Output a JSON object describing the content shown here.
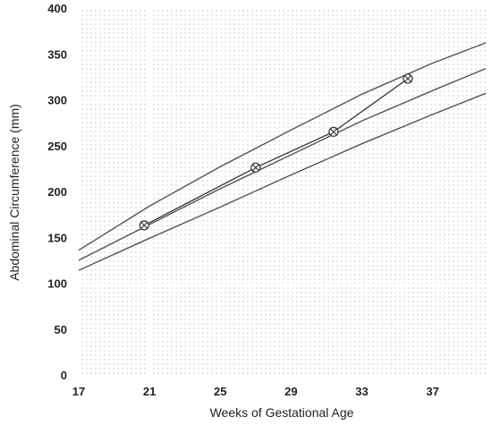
{
  "chart_data": {
    "type": "line",
    "title": "",
    "xlabel": "Weeks of Gestational Age",
    "ylabel": "Abdominal Circumference (mm)",
    "xlim": [
      17,
      40
    ],
    "ylim": [
      0,
      400
    ],
    "xticks": [
      17,
      21,
      25,
      29,
      33,
      37
    ],
    "yticks": [
      0,
      50,
      100,
      150,
      200,
      250,
      300,
      350,
      400
    ],
    "background": "stippled",
    "grid": true,
    "colors": {
      "reference_curves": "#555555",
      "measurements": "#333333"
    },
    "reference_curves": [
      {
        "x": [
          17,
          21,
          25,
          29,
          33,
          37,
          40
        ],
        "y": [
          137,
          185,
          228,
          268,
          307,
          341,
          363
        ]
      },
      {
        "x": [
          17,
          21,
          25,
          29,
          33,
          37,
          40
        ],
        "y": [
          126,
          165,
          204,
          241,
          278,
          311,
          335
        ]
      },
      {
        "x": [
          17,
          21,
          25,
          29,
          33,
          37,
          40
        ],
        "y": [
          115,
          150,
          184,
          219,
          253,
          285,
          308
        ]
      }
    ],
    "series": [
      {
        "marker": "circle-x",
        "x": [
          20.7,
          27.0,
          31.4,
          35.6
        ],
        "y": [
          164,
          227,
          266,
          324
        ]
      }
    ]
  }
}
